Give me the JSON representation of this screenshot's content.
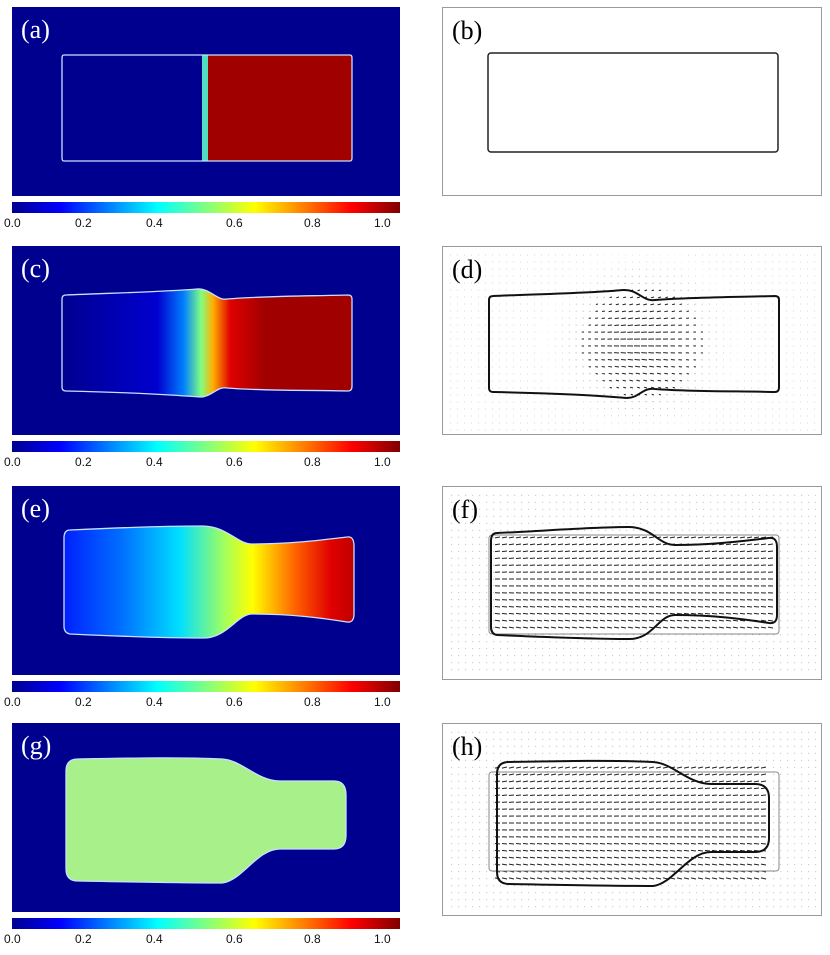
{
  "panels": [
    {
      "label": "(a)"
    },
    {
      "label": "(b)"
    },
    {
      "label": "(c)"
    },
    {
      "label": "(d)"
    },
    {
      "label": "(e)"
    },
    {
      "label": "(f)"
    },
    {
      "label": "(g)"
    },
    {
      "label": "(h)"
    }
  ],
  "colorbar": {
    "ticks": [
      "0.0",
      "0.2",
      "0.4",
      "0.6",
      "0.8",
      "1.0"
    ],
    "range": [
      0.0,
      1.0
    ],
    "colormap": [
      "#00008f",
      "#0000ff",
      "#0080ff",
      "#00ffff",
      "#80ff80",
      "#ffff00",
      "#ff8000",
      "#ff0000",
      "#800000"
    ]
  },
  "colors": {
    "background_field": "#00008f",
    "uniform_state": "#a8f08a"
  }
}
